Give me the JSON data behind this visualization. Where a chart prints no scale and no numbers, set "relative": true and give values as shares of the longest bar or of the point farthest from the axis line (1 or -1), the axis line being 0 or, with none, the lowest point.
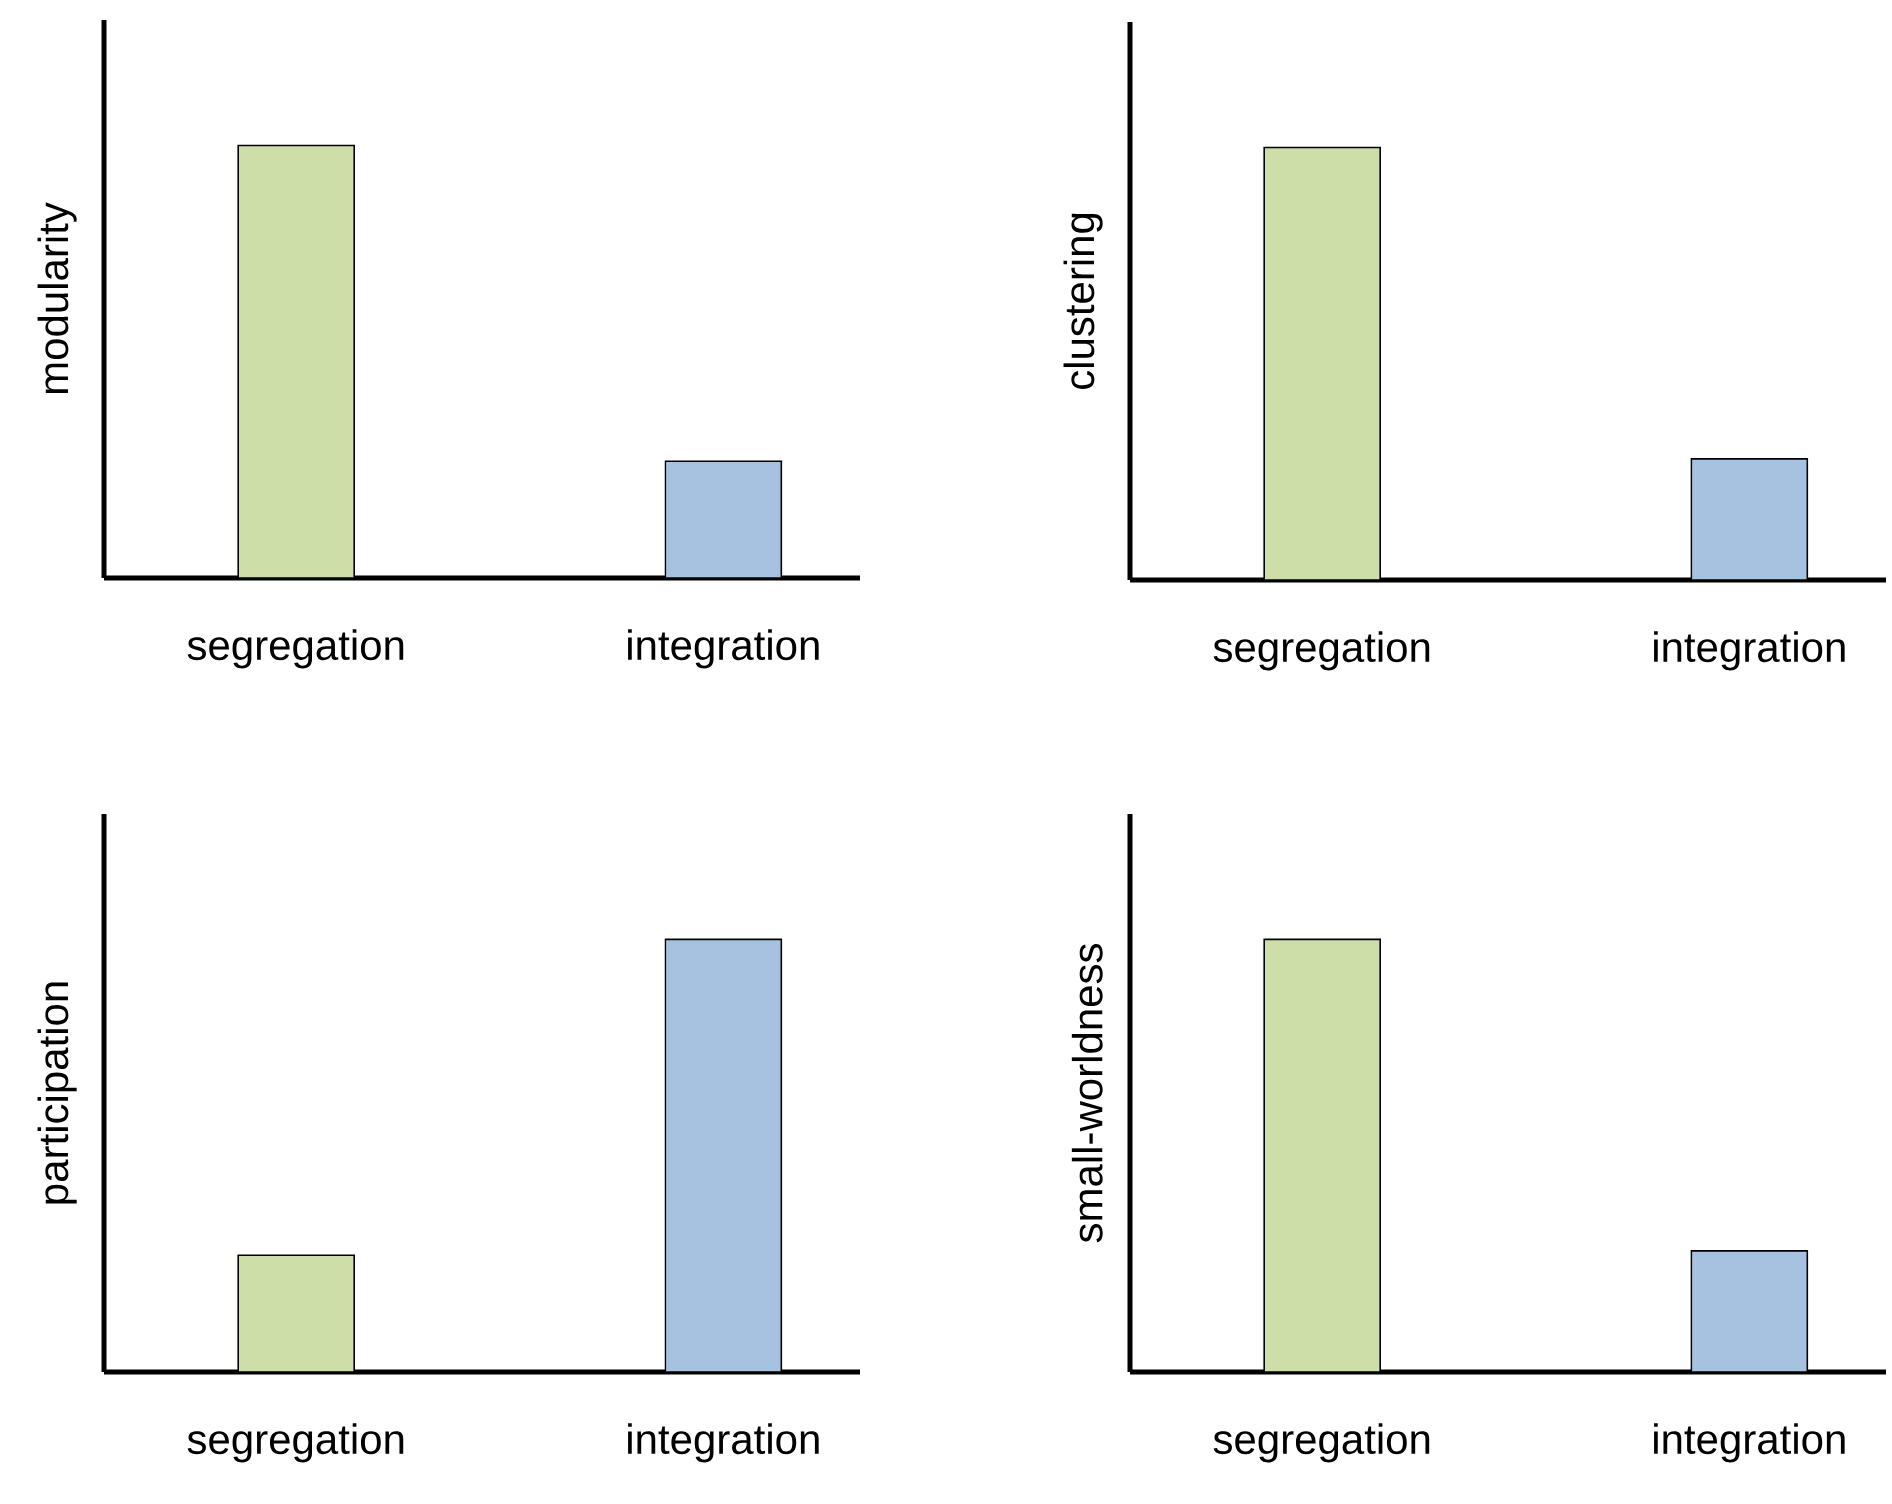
{
  "chart_data": [
    {
      "type": "bar",
      "ylabel": "modularity",
      "categories": [
        "segregation",
        "integration"
      ],
      "values": [
        1,
        0.27
      ],
      "colors": [
        "#cddea9",
        "#a7c2e0"
      ],
      "relative": true
    },
    {
      "type": "bar",
      "ylabel": "clustering",
      "categories": [
        "segregation",
        "integration"
      ],
      "values": [
        1,
        0.28
      ],
      "colors": [
        "#cddea9",
        "#a7c2e0"
      ],
      "relative": true
    },
    {
      "type": "bar",
      "ylabel": "participation",
      "categories": [
        "segregation",
        "integration"
      ],
      "values": [
        0.27,
        1
      ],
      "colors": [
        "#cddea9",
        "#a7c2e0"
      ],
      "relative": true
    },
    {
      "type": "bar",
      "ylabel": "small-worldness",
      "categories": [
        "segregation",
        "integration"
      ],
      "values": [
        1,
        0.28
      ],
      "colors": [
        "#cddea9",
        "#a7c2e0"
      ],
      "relative": true
    }
  ]
}
